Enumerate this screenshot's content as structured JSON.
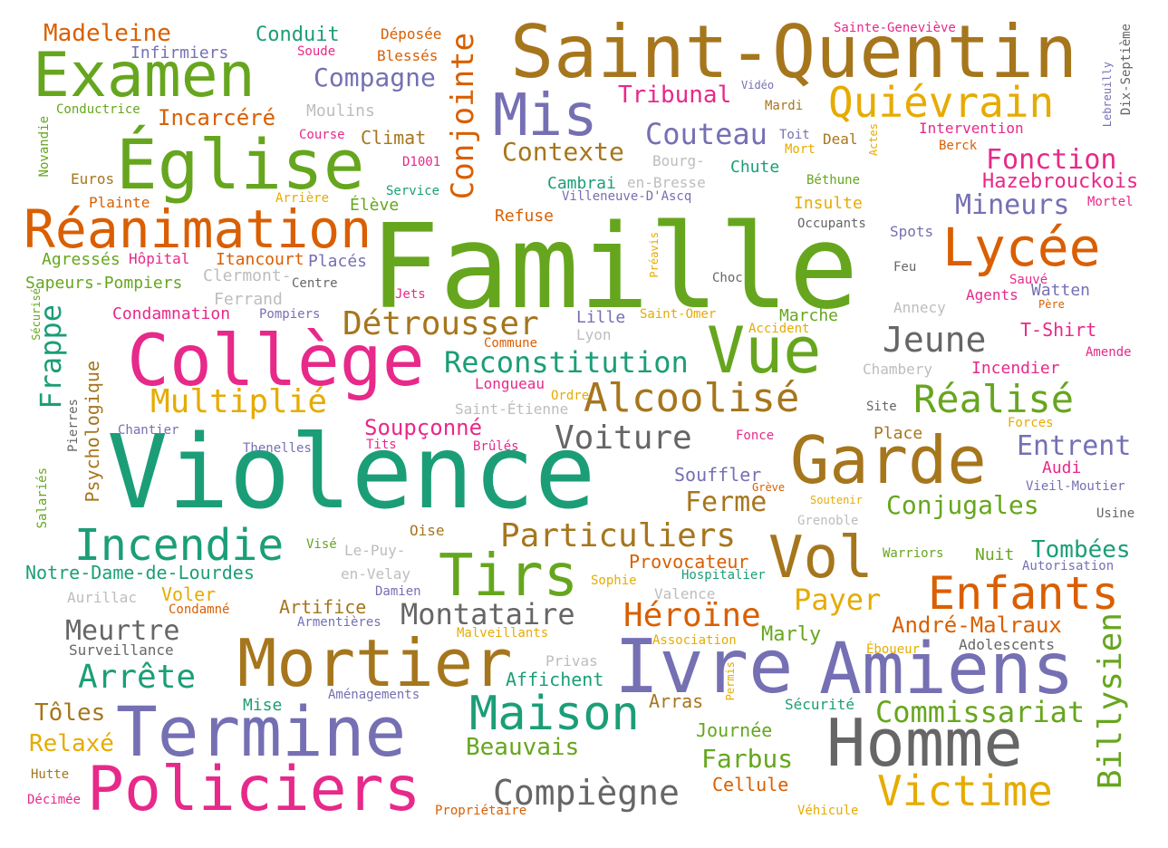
{
  "colors": {
    "teal": "#1b9e77",
    "orange": "#d95f02",
    "purple": "#7570b3",
    "magenta": "#e7298a",
    "green": "#66a61e",
    "gold": "#e6ab02",
    "brown": "#a6761d",
    "gray": "#666666",
    "lightgray": "#bdbdbd"
  },
  "words": [
    "Famille",
    "Violence",
    "Saint-Quentin",
    "Église",
    "Examen",
    "Réanimation",
    "Collège",
    "Termine",
    "Policiers",
    "Mortier",
    "Ivre",
    "Amiens",
    "Homme",
    "Garde",
    "Vol",
    "Vue",
    "Lycée",
    "Mis",
    "Tirs",
    "Incendie",
    "Maison",
    "Quiévrain",
    "Alcoolisé",
    "Réalisé",
    "Enfants",
    "Victime",
    "Détrousser",
    "Particuliers",
    "Reconstitution",
    "Multiplié",
    "Montataire",
    "Héroïne",
    "Jeune",
    "Commissariat",
    "Billysien",
    "Conjointe",
    "Frappe",
    "Arrête",
    "Meurtre",
    "Voiture",
    "Compiègne",
    "Couteau",
    "Contexte",
    "Fonction",
    "Hazebrouckois",
    "Mineurs",
    "Entrent",
    "Conjugales",
    "Tombées",
    "André-Malraux",
    "Payer",
    "Farbus",
    "Beauvais",
    "Madeleine",
    "Compagne",
    "Tribunal",
    "Ferme",
    "Soupçonné",
    "Souffler",
    "Provocateur",
    "Marly",
    "Journée",
    "Cellule",
    "Arras",
    "Affichent",
    "Relaxé",
    "Tôles",
    "Voler",
    "Artifice",
    "Incarcéré",
    "Conduit",
    "Infirmiers",
    "Notre-Dame-de-Lourdes",
    "Sapeurs-Pompiers",
    "Agressés",
    "Itancourt",
    "Hôpital",
    "Placés",
    "Clermont-",
    "Ferrand",
    "Condamnation",
    "Pompiers",
    "Refuse",
    "Élève",
    "Service",
    "Climat",
    "Moulins",
    "Course",
    "D1001",
    "Soude",
    "Blessés",
    "Déposée",
    "Conductrice",
    "Euros",
    "Plainte",
    "Arrière",
    "Novandie",
    "Psychologique",
    "Pierres",
    "Salariés",
    "Sécurisé",
    "Chantier",
    "Thenelles",
    "Tits",
    "Brûlés",
    "Ordre",
    "Saint-Étienne",
    "Longueau",
    "Commune",
    "Lyon",
    "Lille",
    "Jets",
    "Centre",
    "Saint-Omer",
    "Accident",
    "Marche",
    "Chute",
    "Bourg-",
    "en-Bresse",
    "Cambrai",
    "Villeneuve-D'Ascq",
    "Vidéo",
    "Mardi",
    "Toit",
    "Mort",
    "Deal",
    "Actes",
    "Béthune",
    "Insulte",
    "Occupants",
    "Spots",
    "Feu",
    "Choc",
    "Préavis",
    "Annecy",
    "Sauvé",
    "Agents",
    "Père",
    "Watten",
    "T-Shirt",
    "Amende",
    "Incendier",
    "Chambery",
    "Site",
    "Forces",
    "Place",
    "Fonce",
    "Audi",
    "Vieil-Moutier",
    "Usine",
    "Grève",
    "Soutenir",
    "Grenoble",
    "Warriors",
    "Nuit",
    "Autorisation",
    "Hospitalier",
    "Sophie",
    "Valence",
    "Visé",
    "Le-Puy-",
    "en-Velay",
    "Oise",
    "Damien",
    "Armentières",
    "Malveillants",
    "Privas",
    "Association",
    "Permis",
    "Éboueur",
    "Adolescents",
    "Sécurité",
    "Aménagements",
    "Mise",
    "Surveillance",
    "Aurillac",
    "Condamné",
    "Hutte",
    "Décimée",
    "Propriétaire",
    "Véhicule",
    "Sainte-Geneviève",
    "Dix-Septième",
    "Lebreuilly",
    "Intervention",
    "Berck",
    "Mortel"
  ]
}
